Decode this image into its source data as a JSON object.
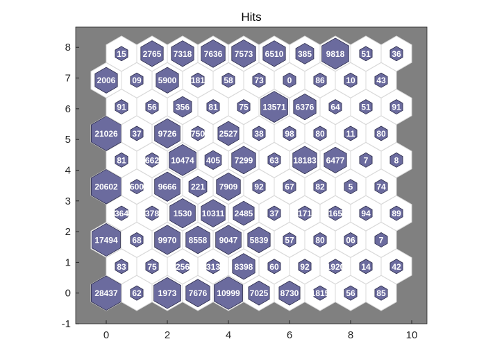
{
  "chart_data": {
    "type": "heatmap",
    "title": "Hits",
    "xlim": [
      -1,
      10.5
    ],
    "ylim": [
      -1,
      8.66
    ],
    "x_ticks": [
      "0",
      "2",
      "4",
      "6",
      "8",
      "10"
    ],
    "y_ticks": [
      "-1",
      "0",
      "1",
      "2",
      "3",
      "4",
      "5",
      "6",
      "7",
      "8"
    ],
    "grid": false,
    "colors": {
      "background": "#808080",
      "cell": "#ffffff",
      "cell_edge": "#d9d9d9",
      "hit": "#6b6b9e",
      "hit_edge": "#2b2b4a",
      "text": "#ffffff"
    },
    "rows": [
      [
        "28437",
        "62",
        "1973",
        "7676",
        "10999",
        "7025",
        "8730",
        "1815",
        "56",
        "85"
      ],
      [
        "83",
        "75",
        "256",
        "313",
        "8398",
        "60",
        "92",
        "1920",
        "14",
        "42"
      ],
      [
        "17494",
        "68",
        "9970",
        "8558",
        "9047",
        "5839",
        "57",
        "80",
        "06",
        "7"
      ],
      [
        "364",
        "378",
        "1530",
        "10311",
        "2485",
        "37",
        "171",
        "165",
        "94",
        "89"
      ],
      [
        "20602",
        "600",
        "9666",
        "221",
        "7909",
        "92",
        "67",
        "82",
        "5",
        "74"
      ],
      [
        "81",
        "662",
        "10474",
        "405",
        "7299",
        "63",
        "18183",
        "6477",
        "7",
        "8"
      ],
      [
        "21026",
        "37",
        "9726",
        "750",
        "2527",
        "38",
        "98",
        "80",
        "11",
        "80"
      ],
      [
        "91",
        "56",
        "356",
        "81",
        "75",
        "13571",
        "6376",
        "64",
        "51",
        "91"
      ],
      [
        "2006",
        "09",
        "5900",
        "181",
        "58",
        "73",
        "0",
        "86",
        "10",
        "43"
      ],
      [
        "15",
        "2765",
        "7318",
        "7636",
        "7573",
        "6510",
        "385",
        "9818",
        "51",
        "36"
      ]
    ],
    "hex_fraction": [
      [
        1.0,
        0.0,
        0.9,
        0.8,
        0.95,
        0.7,
        0.7,
        0.0,
        0.0,
        0.0
      ],
      [
        0.0,
        0.0,
        0.0,
        0.0,
        0.75,
        0.0,
        0.0,
        0.0,
        0.0,
        0.0
      ],
      [
        0.95,
        0.0,
        0.85,
        0.8,
        0.85,
        0.75,
        0.0,
        0.0,
        0.0,
        0.0
      ],
      [
        0.0,
        0.0,
        0.85,
        0.8,
        0.7,
        0.0,
        0.0,
        0.0,
        0.0,
        0.0
      ],
      [
        1.0,
        0.0,
        0.85,
        0.6,
        0.8,
        0.0,
        0.0,
        0.0,
        0.0,
        0.0
      ],
      [
        0.0,
        0.0,
        0.9,
        0.55,
        0.8,
        0.0,
        0.8,
        0.75,
        0.0,
        0.0
      ],
      [
        1.0,
        0.0,
        0.85,
        0.0,
        0.7,
        0.0,
        0.0,
        0.0,
        0.0,
        0.0
      ],
      [
        0.0,
        0.0,
        0.6,
        0.0,
        0.0,
        0.9,
        0.75,
        0.0,
        0.0,
        0.0
      ],
      [
        0.75,
        0.0,
        0.75,
        0.0,
        0.0,
        0.0,
        0.0,
        0.0,
        0.0,
        0.0
      ],
      [
        0.0,
        0.75,
        0.75,
        0.8,
        0.8,
        0.75,
        0.6,
        0.9,
        0.0,
        0.0
      ]
    ]
  }
}
